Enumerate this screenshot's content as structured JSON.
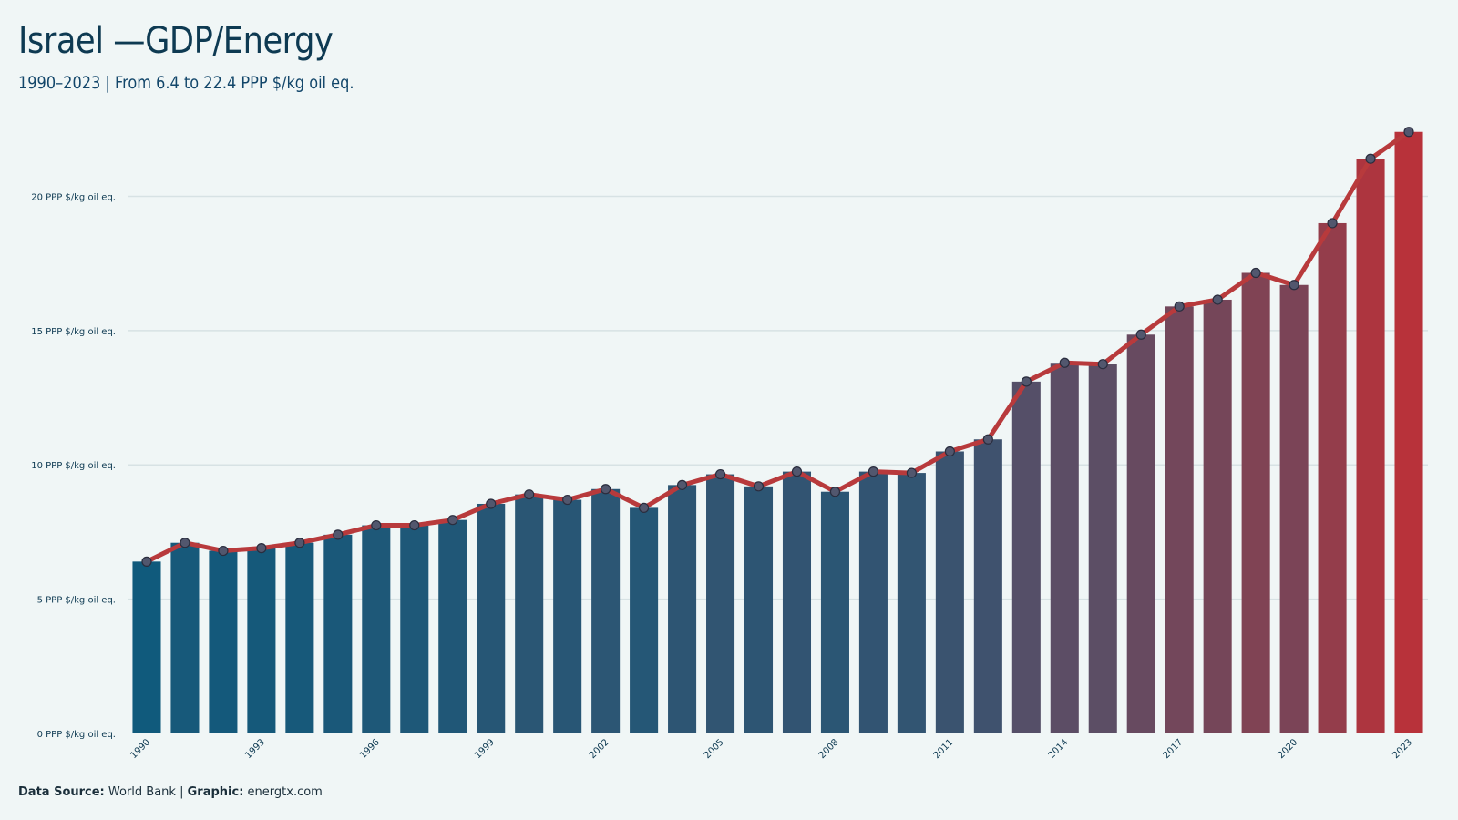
{
  "title": "Israel —GDP/Energy",
  "subtitle": "1990–2023 | From 6.4 to 22.4 PPP $/kg oil eq.",
  "footer": {
    "source_label": "Data Source:",
    "source_value": "World Bank",
    "separator": "|",
    "graphic_label": "Graphic:",
    "graphic_value": "energtx.com"
  },
  "chart_data": {
    "type": "bar",
    "overlay": "line",
    "title": "Israel —GDP/Energy",
    "xlabel": "",
    "ylabel": "",
    "x": [
      1990,
      1991,
      1992,
      1993,
      1994,
      1995,
      1996,
      1997,
      1998,
      1999,
      2000,
      2001,
      2002,
      2003,
      2004,
      2005,
      2006,
      2007,
      2008,
      2009,
      2010,
      2011,
      2012,
      2013,
      2014,
      2015,
      2016,
      2017,
      2018,
      2019,
      2020,
      2021,
      2022,
      2023
    ],
    "values": [
      6.4,
      7.1,
      6.8,
      6.9,
      7.1,
      7.4,
      7.75,
      7.75,
      7.95,
      8.55,
      8.9,
      8.7,
      9.1,
      8.4,
      9.25,
      9.65,
      9.2,
      9.75,
      9.0,
      9.75,
      9.7,
      10.5,
      10.95,
      13.1,
      13.8,
      13.75,
      14.85,
      15.9,
      16.15,
      17.15,
      16.7,
      19.0,
      21.4,
      22.4
    ],
    "ylim": [
      0,
      22.9
    ],
    "yticks": [
      0,
      5,
      10,
      15,
      20
    ],
    "ytick_labels": [
      "0 PPP $/kg oil eq.",
      "5 PPP $/kg oil eq.",
      "10 PPP $/kg oil eq.",
      "15 PPP $/kg oil eq.",
      "20 PPP $/kg oil eq."
    ],
    "xtick_labels": [
      "1990",
      "1993",
      "1996",
      "1999",
      "2002",
      "2005",
      "2008",
      "2011",
      "2014",
      "2017",
      "2020",
      "2023"
    ],
    "grid": true,
    "colors": {
      "low": "#105a7c",
      "mid": "#5a4e66",
      "high": "#b8323a",
      "line": "#b83a3c",
      "marker": "#52576e",
      "grid": "#d7e2e4"
    }
  }
}
